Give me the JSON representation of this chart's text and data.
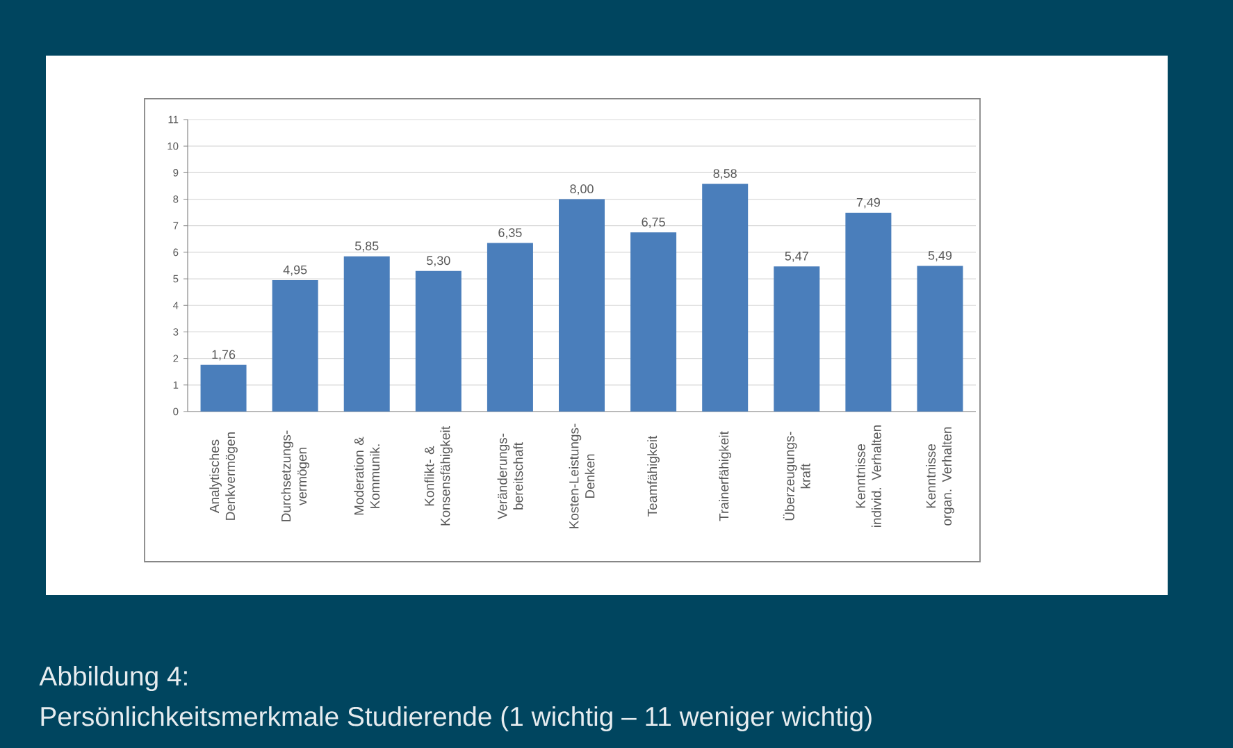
{
  "chart_data": {
    "type": "bar",
    "categories": [
      "Analytisches Denkvermögen",
      "Durchsetzungs-vermögen",
      "Moderation & Kommunik.",
      "Konflikt- & Konsensfähigkeit",
      "Veränderungs-bereitschaft",
      "Kosten-Leistungs-Denken",
      "Teamfähigkeit",
      "Trainerfähigkeit",
      "Überzeugungs-kraft",
      "Kenntnisse individ. Verhalten",
      "Kenntnisse organ. Verhalten"
    ],
    "values": [
      1.76,
      4.95,
      5.85,
      5.3,
      6.35,
      8.0,
      6.75,
      8.58,
      5.47,
      7.49,
      5.49
    ],
    "value_labels": [
      "1,76",
      "4,95",
      "5,85",
      "5,30",
      "6,35",
      "8,00",
      "6,75",
      "8,58",
      "5,47",
      "7,49",
      "5,49"
    ],
    "color": "#4a7ebb",
    "ylim": [
      0,
      11
    ],
    "yticks": [
      0,
      1,
      2,
      3,
      4,
      5,
      6,
      7,
      8,
      9,
      10,
      11
    ],
    "grid": "y",
    "annotations": [
      "Abbildung 4:",
      "Persönlichkeitsmerkmale Studierende (1 wichtig – 11 weniger wichtig)"
    ]
  }
}
